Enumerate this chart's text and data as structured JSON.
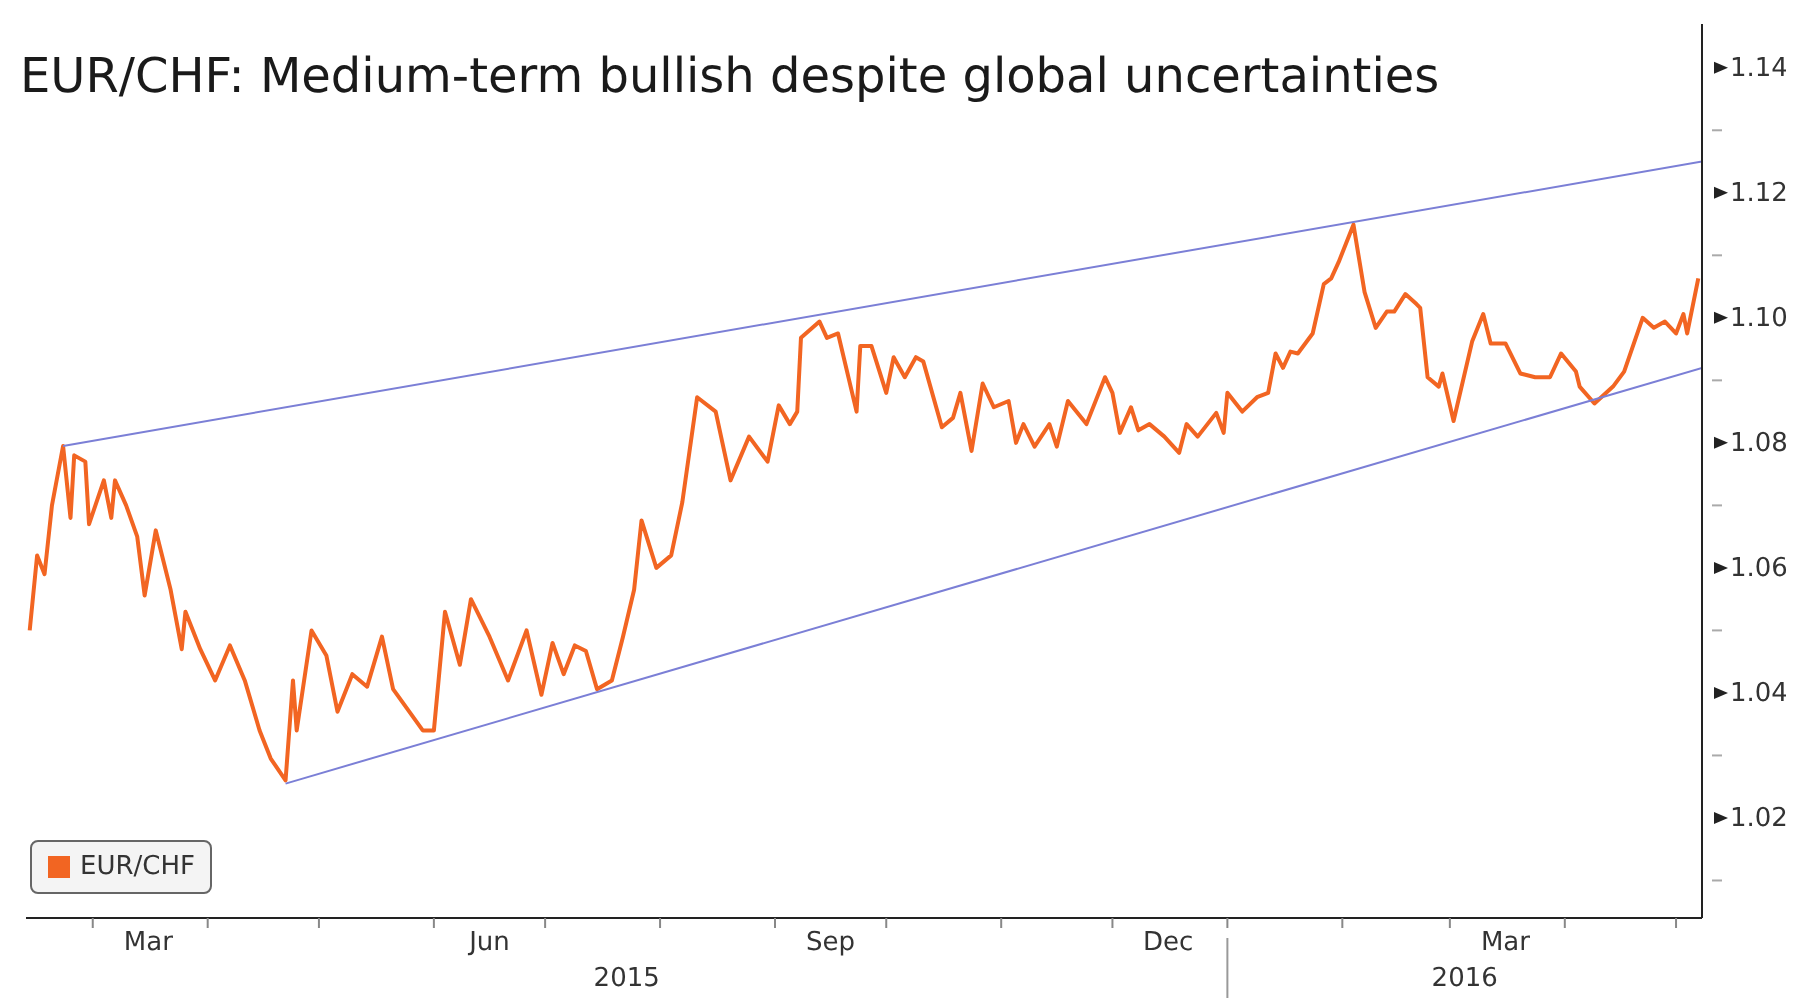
{
  "chart_data": {
    "type": "line",
    "title": "EUR/CHF: Medium-term bullish despite global uncertainties",
    "legend": "bottom left",
    "marker": "none",
    "line_style": "solid",
    "xlim": [
      "2015-02-11",
      "2016-05-08"
    ],
    "xticks": [
      {
        "value": "2015-03-01",
        "label": null
      },
      {
        "value": "2015-03-16",
        "label": "Mar"
      },
      {
        "value": "2015-04-01",
        "label": null
      },
      {
        "value": "2015-05-01",
        "label": null
      },
      {
        "value": "2015-06-01",
        "label": null
      },
      {
        "value": "2015-06-16",
        "label": "Jun"
      },
      {
        "value": "2015-07-01",
        "label": null
      },
      {
        "value": "2015-08-01",
        "label": null
      },
      {
        "value": "2015-09-01",
        "label": null
      },
      {
        "value": "2015-09-16",
        "label": "Sep"
      },
      {
        "value": "2015-10-01",
        "label": null
      },
      {
        "value": "2015-11-01",
        "label": null
      },
      {
        "value": "2015-12-01",
        "label": null
      },
      {
        "value": "2015-12-16",
        "label": "Dec"
      },
      {
        "value": "2016-01-01",
        "label": null
      },
      {
        "value": "2016-02-01",
        "label": null
      },
      {
        "value": "2016-03-01",
        "label": null
      },
      {
        "value": "2016-03-16",
        "label": "Mar"
      },
      {
        "value": "2016-04-01",
        "label": null
      },
      {
        "value": "2016-05-01",
        "label": null
      }
    ],
    "annotations": [
      "2015",
      "2016"
    ],
    "ylim": [
      1.004,
      1.147
    ],
    "yticks": [
      {
        "value": 1.01,
        "label": null
      },
      1.02,
      {
        "value": 1.03,
        "label": null
      },
      1.04,
      {
        "value": 1.05,
        "label": null
      },
      1.06,
      {
        "value": 1.07,
        "label": null
      },
      1.08,
      {
        "value": 1.09,
        "label": null
      },
      {
        "value": 1.1,
        "label": "1.10"
      },
      {
        "value": 1.11,
        "label": null
      },
      1.12,
      {
        "value": 1.13,
        "label": null
      },
      1.14
    ],
    "series": [
      {
        "name": "EUR/CHF",
        "color": "#f26522",
        "x": [
          "2015-02-12",
          "2015-02-14",
          "2015-02-16",
          "2015-02-18",
          "2015-02-21",
          "2015-02-23",
          "2015-02-24",
          "2015-02-27",
          "2015-02-28",
          "2015-03-04",
          "2015-03-06",
          "2015-03-07",
          "2015-03-10",
          "2015-03-13",
          "2015-03-15",
          "2015-03-18",
          "2015-03-22",
          "2015-03-25",
          "2015-03-26",
          "2015-03-30",
          "2015-04-03",
          "2015-04-07",
          "2015-04-11",
          "2015-04-15",
          "2015-04-18",
          "2015-04-22",
          "2015-04-24",
          "2015-04-25",
          "2015-04-29",
          "2015-05-03",
          "2015-05-06",
          "2015-05-10",
          "2015-05-14",
          "2015-05-18",
          "2015-05-21",
          "2015-05-29",
          "2015-06-01",
          "2015-06-04",
          "2015-06-08",
          "2015-06-11",
          "2015-06-16",
          "2015-06-21",
          "2015-06-26",
          "2015-06-30",
          "2015-07-03",
          "2015-07-06",
          "2015-07-09",
          "2015-07-12",
          "2015-07-15",
          "2015-07-19",
          "2015-07-22",
          "2015-07-25",
          "2015-07-27",
          "2015-07-31",
          "2015-08-04",
          "2015-08-07",
          "2015-08-11",
          "2015-08-16",
          "2015-08-20",
          "2015-08-25",
          "2015-08-30",
          "2015-09-02",
          "2015-09-05",
          "2015-09-07",
          "2015-09-08",
          "2015-09-13",
          "2015-09-15",
          "2015-09-18",
          "2015-09-23",
          "2015-09-24",
          "2015-09-27",
          "2015-10-01",
          "2015-10-03",
          "2015-10-06",
          "2015-10-09",
          "2015-10-11",
          "2015-10-16",
          "2015-10-19",
          "2015-10-21",
          "2015-10-24",
          "2015-10-27",
          "2015-10-30",
          "2015-11-03",
          "2015-11-05",
          "2015-11-07",
          "2015-11-10",
          "2015-11-14",
          "2015-11-16",
          "2015-11-19",
          "2015-11-24",
          "2015-11-29",
          "2015-12-01",
          "2015-12-03",
          "2015-12-06",
          "2015-12-08",
          "2015-12-11",
          "2015-12-15",
          "2015-12-19",
          "2015-12-21",
          "2015-12-24",
          "2015-12-29",
          "2015-12-31",
          "2016-01-01",
          "2016-01-05",
          "2016-01-09",
          "2016-01-12",
          "2016-01-14",
          "2016-01-16",
          "2016-01-18",
          "2016-01-20",
          "2016-01-24",
          "2016-01-27",
          "2016-01-29",
          "2016-01-31",
          "2016-02-04",
          "2016-02-07",
          "2016-02-10",
          "2016-02-13",
          "2016-02-15",
          "2016-02-18",
          "2016-02-21",
          "2016-02-22",
          "2016-02-24",
          "2016-02-27",
          "2016-02-28",
          "2016-03-02",
          "2016-03-07",
          "2016-03-10",
          "2016-03-12",
          "2016-03-16",
          "2016-03-20",
          "2016-03-24",
          "2016-03-28",
          "2016-03-31",
          "2016-04-04",
          "2016-04-05",
          "2016-04-09",
          "2016-04-14",
          "2016-04-17",
          "2016-04-22",
          "2016-04-25",
          "2016-04-28",
          "2016-05-01",
          "2016-05-03",
          "2016-05-04",
          "2016-05-07"
        ],
        "values": [
          1.05,
          1.062,
          1.059,
          1.07,
          1.0795,
          1.068,
          1.078,
          1.077,
          1.067,
          1.074,
          1.068,
          1.074,
          1.07,
          1.065,
          1.0556,
          1.066,
          1.0565,
          1.047,
          1.053,
          1.047,
          1.042,
          1.0476,
          1.042,
          1.034,
          1.0295,
          1.026,
          1.042,
          1.034,
          1.05,
          1.046,
          1.037,
          1.043,
          1.041,
          1.049,
          1.0406,
          1.034,
          1.034,
          1.053,
          1.0445,
          1.055,
          1.049,
          1.042,
          1.05,
          1.0397,
          1.048,
          1.043,
          1.0476,
          1.0467,
          1.0406,
          1.042,
          1.049,
          1.0565,
          1.0676,
          1.06,
          1.062,
          1.0705,
          1.0873,
          1.085,
          1.074,
          1.081,
          1.077,
          1.086,
          1.083,
          1.085,
          1.0968,
          1.0994,
          1.0968,
          1.0975,
          1.085,
          1.0955,
          1.0955,
          1.088,
          1.0937,
          1.0905,
          1.0937,
          1.093,
          1.0825,
          1.084,
          1.088,
          1.0787,
          1.0895,
          1.0857,
          1.0867,
          1.08,
          1.083,
          1.0794,
          1.083,
          1.0794,
          1.0867,
          1.083,
          1.0905,
          1.088,
          1.0816,
          1.0857,
          1.082,
          1.083,
          1.081,
          1.0784,
          1.083,
          1.081,
          1.0848,
          1.0816,
          1.088,
          1.085,
          1.0873,
          1.088,
          1.0943,
          1.092,
          1.0946,
          1.0943,
          1.0975,
          1.1054,
          1.1063,
          1.1089,
          1.1149,
          1.1041,
          1.0984,
          1.101,
          1.101,
          1.1038,
          1.1022,
          1.1016,
          1.0905,
          1.089,
          1.0911,
          1.0835,
          1.0962,
          1.1006,
          1.0959,
          1.0959,
          1.0911,
          1.0905,
          1.0905,
          1.0943,
          1.0914,
          1.089,
          1.0863,
          1.089,
          1.0914,
          1.1,
          1.0984,
          1.0994,
          1.0975,
          1.1006,
          1.0975,
          1.1063
        ]
      },
      {
        "type": "line",
        "color": "#7b7fd6",
        "x": [
          "2015-02-21",
          "2016-05-08"
        ],
        "values": [
          1.0795,
          1.125
        ]
      },
      {
        "type": "line",
        "color": "#7b7fd6",
        "x": [
          "2015-04-22",
          "2016-05-08"
        ],
        "values": [
          1.0255,
          1.092
        ]
      }
    ]
  }
}
